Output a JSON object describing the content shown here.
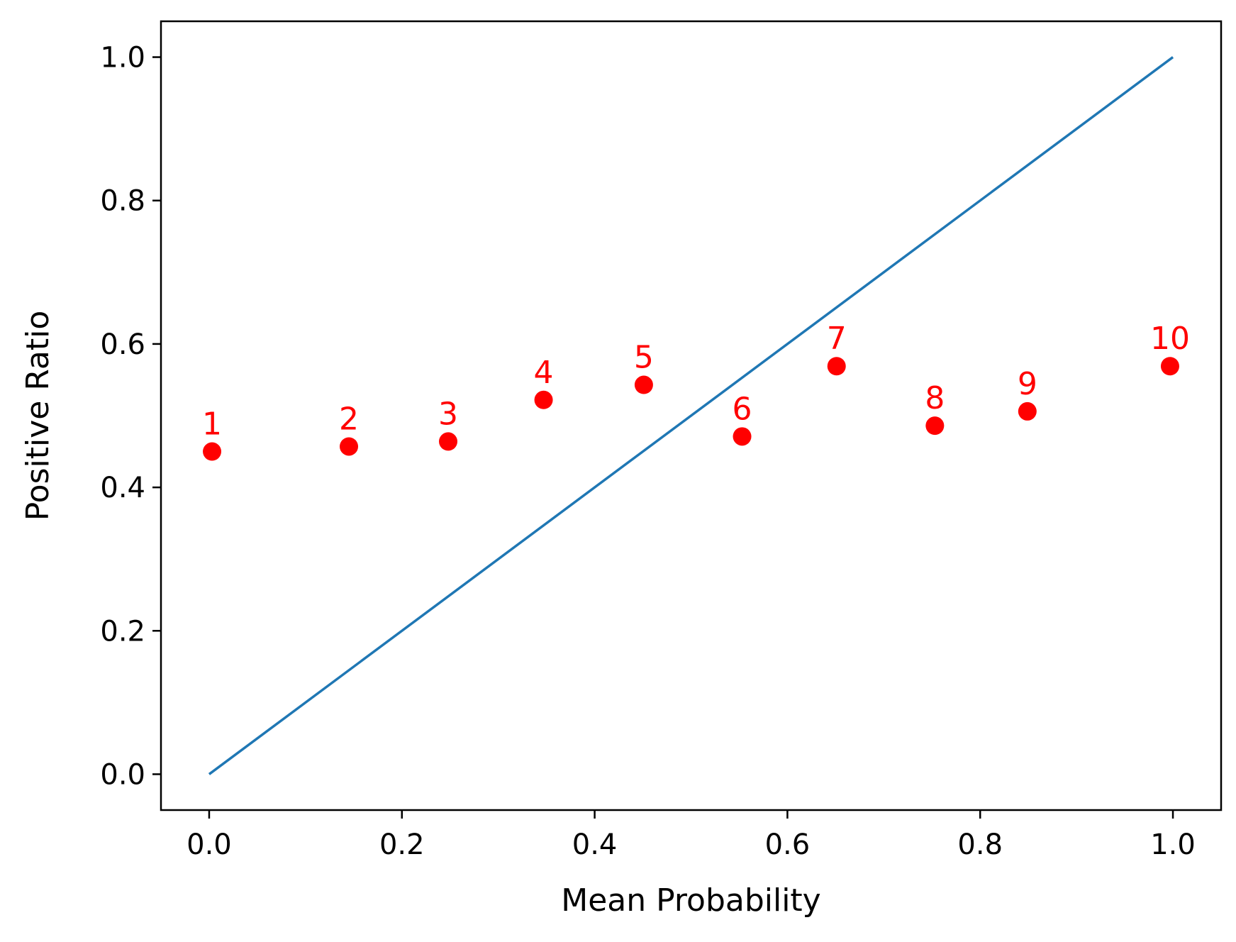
{
  "chart_data": {
    "type": "scatter",
    "title": "",
    "xlabel": "Mean Probability",
    "ylabel": "Positive Ratio",
    "xlim": [
      -0.05,
      1.05
    ],
    "ylim": [
      -0.05,
      1.05
    ],
    "x_ticks": [
      "0.0",
      "0.2",
      "0.4",
      "0.6",
      "0.8",
      "1.0"
    ],
    "y_ticks": [
      "0.0",
      "0.2",
      "0.4",
      "0.6",
      "0.8",
      "1.0"
    ],
    "grid": false,
    "series": [
      {
        "type": "line",
        "color": "#1f77b4",
        "x": [
          0,
          1
        ],
        "y": [
          0,
          1
        ]
      },
      {
        "type": "scatter",
        "color": "#ff0000",
        "x": [
          0.003,
          0.145,
          0.248,
          0.347,
          0.451,
          0.553,
          0.651,
          0.753,
          0.849,
          0.997
        ],
        "y": [
          0.45,
          0.457,
          0.464,
          0.522,
          0.543,
          0.471,
          0.569,
          0.486,
          0.506,
          0.569
        ],
        "point_labels": [
          "1",
          "2",
          "3",
          "4",
          "5",
          "6",
          "7",
          "8",
          "9",
          "10"
        ]
      }
    ]
  }
}
